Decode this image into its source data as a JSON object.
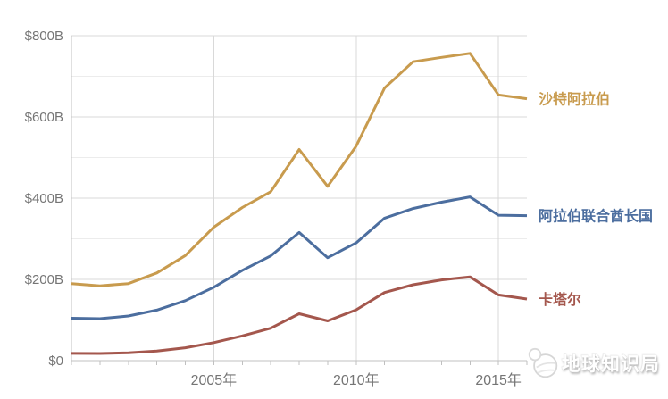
{
  "chart_data": {
    "type": "line",
    "title": "",
    "xlabel": "",
    "ylabel": "",
    "xlim": [
      2000,
      2016
    ],
    "ylim": [
      0,
      800
    ],
    "grid": true,
    "legend_position": "right-of-line-end",
    "x": [
      2000,
      2001,
      2002,
      2003,
      2004,
      2005,
      2006,
      2007,
      2008,
      2009,
      2010,
      2011,
      2012,
      2013,
      2014,
      2015,
      2016
    ],
    "x_major_ticks": [
      {
        "value": 2005,
        "label": "2005年"
      },
      {
        "value": 2010,
        "label": "2010年"
      },
      {
        "value": 2015,
        "label": "2015年"
      }
    ],
    "y_major_ticks": [
      {
        "value": 0,
        "label": "$0"
      },
      {
        "value": 200,
        "label": "$200B"
      },
      {
        "value": 400,
        "label": "$400B"
      },
      {
        "value": 600,
        "label": "$600B"
      },
      {
        "value": 800,
        "label": "$800B"
      }
    ],
    "y_minor_step": 100,
    "series": [
      {
        "id": "saudi-arabia",
        "name": "沙特阿拉伯",
        "color": "#C89B4E",
        "values": [
          189.5,
          184.1,
          189.6,
          215.8,
          258.7,
          328.5,
          376.9,
          415.9,
          519.8,
          429.1,
          528.2,
          671.2,
          735.9,
          746.6,
          756.4,
          654.3,
          644.9
        ]
      },
      {
        "id": "united-arab-emirates",
        "name": "阿拉伯联合酋长国",
        "color": "#4C6E9F",
        "values": [
          104.3,
          103.3,
          109.8,
          124.3,
          147.8,
          180.6,
          222.1,
          257.9,
          315.5,
          253.5,
          289.8,
          350.7,
          374.6,
          390.1,
          403.1,
          358.1,
          357.0
        ]
      },
      {
        "id": "qatar",
        "name": "卡塔尔",
        "color": "#A4574D",
        "values": [
          17.8,
          17.5,
          19.4,
          23.5,
          31.7,
          44.5,
          60.9,
          79.7,
          115.3,
          97.8,
          125.1,
          167.8,
          186.8,
          198.7,
          206.2,
          161.7,
          151.7
        ]
      }
    ],
    "colors": {
      "grid_major": "#D9D9D9",
      "grid_minor": "#ECECEC",
      "axis": "#C0C0C0",
      "tick_label": "#757575"
    }
  },
  "watermark": {
    "text": "地球知识局",
    "icon": "globe-icon"
  }
}
